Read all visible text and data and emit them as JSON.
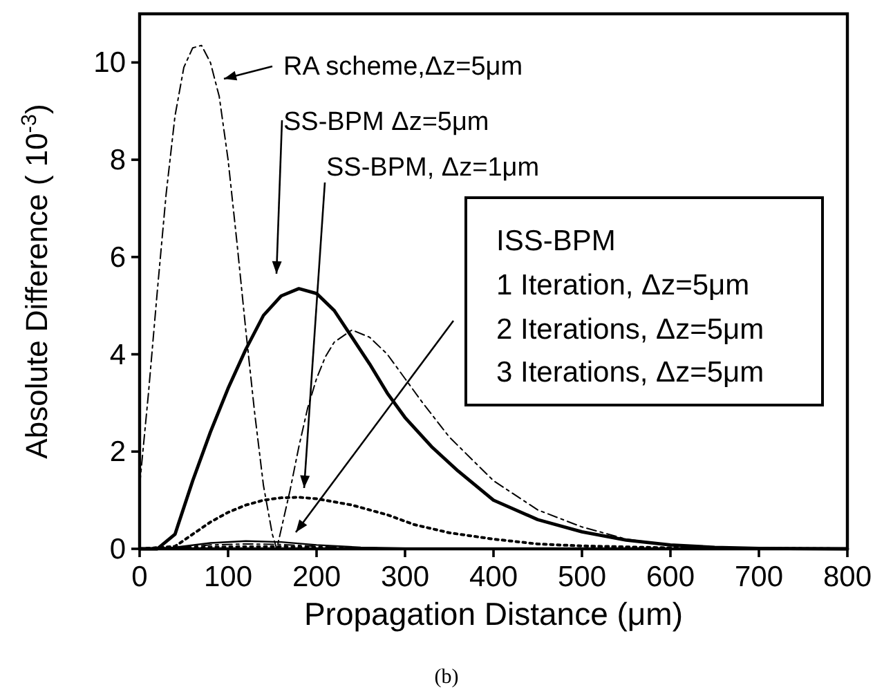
{
  "chart_data": {
    "type": "line",
    "xlabel": "Propagation Distance (μm)",
    "ylabel": "Absolute Difference ( 10$^{-3}$)",
    "xlim": [
      0,
      800
    ],
    "ylim": [
      0,
      11
    ],
    "xticks": [
      0,
      100,
      200,
      300,
      400,
      500,
      600,
      700,
      800
    ],
    "yticks": [
      0,
      2,
      4,
      6,
      8,
      10
    ],
    "grid": false,
    "marker": "none",
    "annotations": [
      "RA scheme,Δz=5μm",
      "SS-BPM Δz=5μm",
      "SS-BPM, Δz=1μm",
      "ISS-BPM",
      "1 Iteration, Δz=5μm",
      "2 Iterations, Δz=5μm",
      "3 Iterations, Δz=5μm",
      "(b)"
    ],
    "series": [
      {
        "color": "#000000",
        "line_style": "dashed",
        "x": [
          0,
          10,
          20,
          30,
          40,
          50,
          60,
          70,
          80,
          90,
          100,
          110,
          120,
          130,
          140,
          150,
          155,
          160,
          170,
          180,
          190,
          200,
          210,
          220,
          240,
          260,
          280,
          300,
          320,
          350,
          400,
          450,
          500,
          550,
          600,
          650,
          700,
          800
        ],
        "values": [
          1.3,
          3.2,
          5.3,
          7.3,
          8.9,
          9.9,
          10.3,
          10.35,
          10.0,
          9.3,
          8.0,
          6.3,
          4.5,
          2.8,
          1.3,
          0.3,
          0,
          0.4,
          1.2,
          2.1,
          2.9,
          3.5,
          3.95,
          4.25,
          4.5,
          4.35,
          4.0,
          3.5,
          3.0,
          2.3,
          1.4,
          0.8,
          0.45,
          0.2,
          0.08,
          0.03,
          0.01,
          0
        ]
      },
      {
        "color": "#000000",
        "line_style": "solid",
        "x": [
          0,
          20,
          40,
          60,
          80,
          100,
          120,
          140,
          160,
          180,
          200,
          220,
          240,
          260,
          280,
          300,
          330,
          360,
          400,
          450,
          500,
          550,
          600,
          650,
          700,
          800
        ],
        "values": [
          0,
          0,
          0.3,
          1.4,
          2.4,
          3.3,
          4.1,
          4.8,
          5.2,
          5.35,
          5.25,
          4.9,
          4.35,
          3.8,
          3.2,
          2.7,
          2.1,
          1.6,
          1.0,
          0.6,
          0.35,
          0.18,
          0.08,
          0.03,
          0.01,
          0
        ]
      },
      {
        "color": "#000000",
        "line_style": "dotted",
        "x": [
          0,
          40,
          60,
          80,
          100,
          120,
          140,
          160,
          180,
          200,
          240,
          280,
          310,
          350,
          400,
          450,
          500,
          600,
          800
        ],
        "values": [
          0,
          0.05,
          0.3,
          0.55,
          0.75,
          0.9,
          1.0,
          1.05,
          1.06,
          1.03,
          0.9,
          0.7,
          0.5,
          0.33,
          0.2,
          0.1,
          0.06,
          0.02,
          0
        ]
      },
      {
        "color": "#000000",
        "line_style": "solid",
        "x": [
          0,
          40,
          80,
          120,
          160,
          200,
          250,
          300,
          800
        ],
        "values": [
          0,
          0.03,
          0.12,
          0.16,
          0.14,
          0.08,
          0.03,
          0.01,
          0
        ]
      },
      {
        "color": "#000000",
        "line_style": "dashed",
        "x": [
          0,
          40,
          80,
          120,
          160,
          200,
          250,
          300,
          800
        ],
        "values": [
          0,
          0.02,
          0.08,
          0.1,
          0.09,
          0.05,
          0.02,
          0.01,
          0
        ]
      },
      {
        "color": "#000000",
        "line_style": "dotted",
        "x": [
          0,
          40,
          80,
          120,
          160,
          200,
          250,
          300,
          800
        ],
        "values": [
          0,
          0.01,
          0.04,
          0.05,
          0.05,
          0.03,
          0.01,
          0,
          0
        ]
      }
    ]
  }
}
